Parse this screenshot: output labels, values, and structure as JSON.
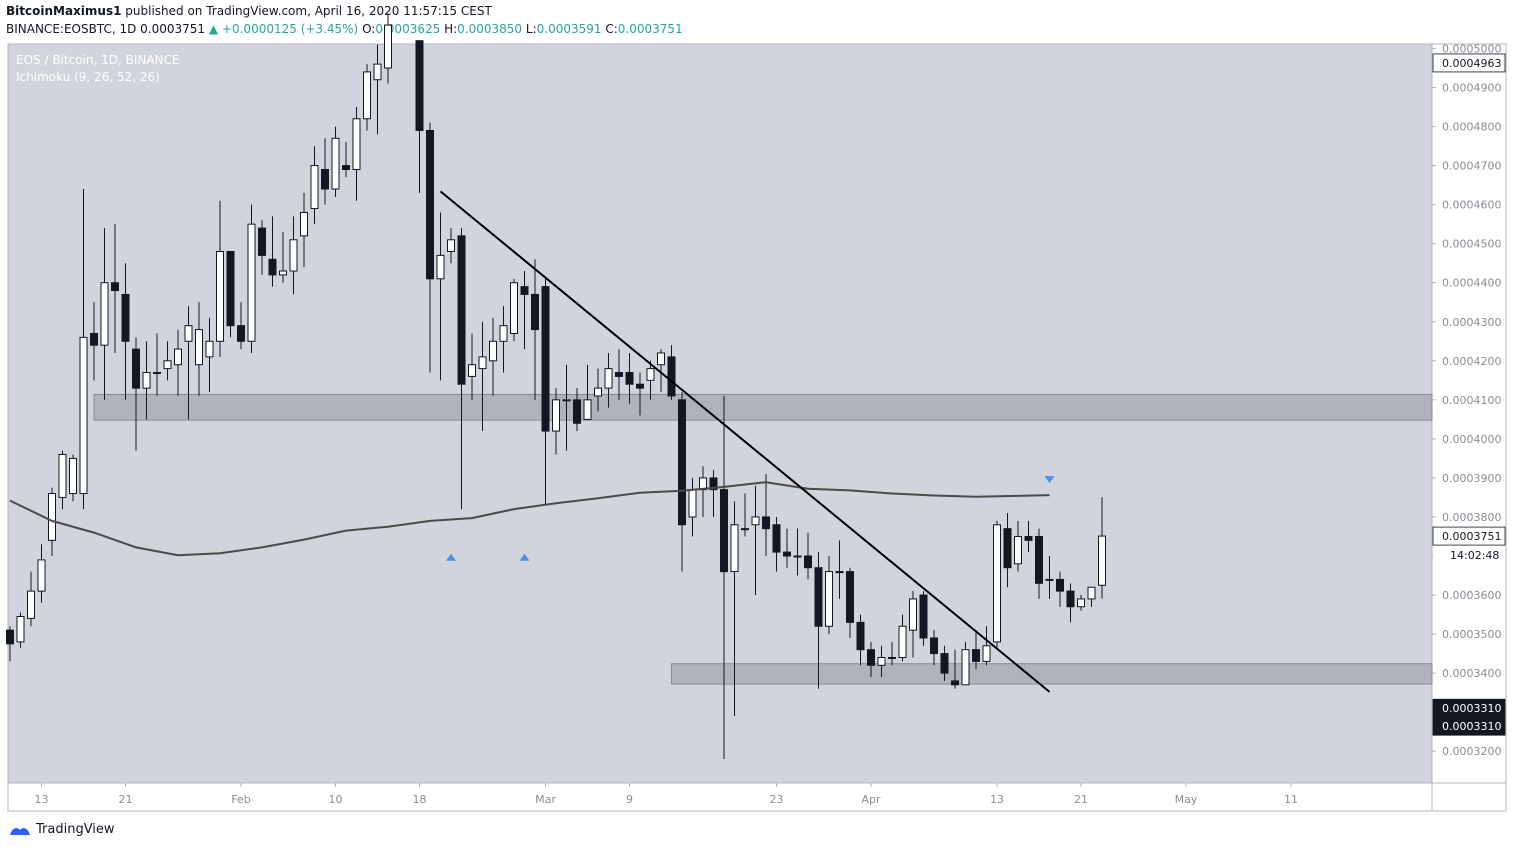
{
  "header": {
    "author": "BitcoinMaximus1",
    "published": "published on TradingView.com, April 16, 2020 11:57:15 CEST",
    "symbol": "BINANCE:EOSBTC, 1D",
    "last": "0.0003751",
    "change": "▲ +0.0000125 (+3.45%)",
    "o_label": "O:",
    "o": "0.0003625",
    "h_label": "H:",
    "h": "0.0003850",
    "l_label": "L:",
    "l": "0.0003591",
    "c_label": "C:",
    "c": "0.0003751"
  },
  "footer": {
    "brand": "TradingView"
  },
  "chart_data": {
    "type": "candlestick",
    "title": "EOS / Bitcoin, 1D, BINANCE",
    "indicator": "Ichimoku (9, 26, 52, 26)",
    "colors": {
      "background": "#d1d4dc",
      "up_body": "#ffffff",
      "down_body": "#131722",
      "zone": "#9598a1",
      "marker": "#4a8fe6",
      "trendline": "#000000",
      "baseline": "#4a4a4a"
    },
    "ylim": [
      0.00031185,
      0.00050115
    ],
    "y_ticks": [
      "0.0005000",
      "0.0004900",
      "0.0004800",
      "0.0004700",
      "0.0004600",
      "0.0004500",
      "0.0004400",
      "0.0004300",
      "0.0004200",
      "0.0004100",
      "0.0004000",
      "0.0003900",
      "0.0003800",
      "0.0003700",
      "0.0003600",
      "0.0003500",
      "0.0003400",
      "0.0003300",
      "0.0003200"
    ],
    "price_labels": [
      {
        "value": "0.0004963",
        "style": "outline"
      },
      {
        "value": "0.0003751",
        "style": "outline"
      },
      {
        "value": "14:02:48",
        "style": "plain",
        "price": 0.0003702
      },
      {
        "value": "0.0003310",
        "style": "dark"
      },
      {
        "value": "0.0003310",
        "style": "dark",
        "price": 0.0003264
      }
    ],
    "x_ticks": [
      {
        "label": "13",
        "day": 3
      },
      {
        "label": "21",
        "day": 11
      },
      {
        "label": "Feb",
        "day": 22
      },
      {
        "label": "10",
        "day": 31
      },
      {
        "label": "18",
        "day": 39
      },
      {
        "label": "Mar",
        "day": 51
      },
      {
        "label": "9",
        "day": 59
      },
      {
        "label": "23",
        "day": 73
      },
      {
        "label": "Apr",
        "day": 82
      },
      {
        "label": "13",
        "day": 94
      },
      {
        "label": "21",
        "day": 102
      },
      {
        "label": "May",
        "day": 112
      },
      {
        "label": "11",
        "day": 122
      }
    ],
    "zones": [
      {
        "low": 0.0004048,
        "high": 0.0004114,
        "from_day": 8
      },
      {
        "low": 0.0003372,
        "high": 0.0003424,
        "from_day": 63
      }
    ],
    "trendline": {
      "from": [
        41,
        0.0004634
      ],
      "to": [
        99,
        0.0003352
      ]
    },
    "markers": [
      {
        "day": 42,
        "price": 0.0003698,
        "dir": "up"
      },
      {
        "day": 49,
        "price": 0.0003698,
        "dir": "up"
      },
      {
        "day": 99,
        "price": 0.0003897,
        "dir": "down"
      }
    ],
    "baseline": [
      [
        0,
        0.0003842
      ],
      [
        4,
        0.000379
      ],
      [
        8,
        0.000376
      ],
      [
        12,
        0.0003722
      ],
      [
        16,
        0.0003702
      ],
      [
        20,
        0.0003707
      ],
      [
        24,
        0.0003722
      ],
      [
        28,
        0.0003742
      ],
      [
        32,
        0.0003765
      ],
      [
        36,
        0.0003775
      ],
      [
        40,
        0.000379
      ],
      [
        44,
        0.0003797
      ],
      [
        48,
        0.000382
      ],
      [
        52,
        0.0003835
      ],
      [
        56,
        0.0003848
      ],
      [
        60,
        0.0003862
      ],
      [
        64,
        0.0003867
      ],
      [
        68,
        0.0003877
      ],
      [
        72,
        0.0003889
      ],
      [
        76,
        0.0003872
      ],
      [
        80,
        0.0003868
      ],
      [
        84,
        0.000386
      ],
      [
        88,
        0.0003855
      ],
      [
        92,
        0.0003852
      ],
      [
        96,
        0.0003854
      ],
      [
        99,
        0.0003856
      ]
    ],
    "candles": [
      [
        0,
        0.000351,
        0.0003475,
        0.000352,
        0.000343
      ],
      [
        1,
        0.000348,
        0.0003545,
        0.0003555,
        0.0003465
      ],
      [
        2,
        0.000354,
        0.000361,
        0.000366,
        0.000352
      ],
      [
        3,
        0.000361,
        0.000369,
        0.000373,
        0.000358
      ],
      [
        4,
        0.000374,
        0.000386,
        0.0003875,
        0.00037
      ],
      [
        5,
        0.000385,
        0.000396,
        0.000397,
        0.000382
      ],
      [
        6,
        0.000386,
        0.000395,
        0.000396,
        0.000384
      ],
      [
        7,
        0.000386,
        0.000426,
        0.000464,
        0.000382
      ],
      [
        8,
        0.000427,
        0.000424,
        0.000435,
        0.000415
      ],
      [
        9,
        0.000424,
        0.00044,
        0.000454,
        0.00041
      ],
      [
        10,
        0.00044,
        0.000438,
        0.000455,
        0.000422
      ],
      [
        11,
        0.000437,
        0.000425,
        0.000445,
        0.00041
      ],
      [
        12,
        0.000423,
        0.000413,
        0.000426,
        0.000397
      ],
      [
        13,
        0.000413,
        0.000417,
        0.000425,
        0.000405
      ],
      [
        14,
        0.000417,
        0.000417,
        0.000427,
        0.000411
      ],
      [
        15,
        0.000418,
        0.00042,
        0.000425,
        0.000415
      ],
      [
        16,
        0.000419,
        0.000423,
        0.000428,
        0.000411
      ],
      [
        17,
        0.000425,
        0.000429,
        0.000434,
        0.000405
      ],
      [
        18,
        0.000419,
        0.000428,
        0.000435,
        0.000411
      ],
      [
        19,
        0.000421,
        0.000425,
        0.000431,
        0.000412
      ],
      [
        20,
        0.000425,
        0.000448,
        0.000461,
        0.000421
      ],
      [
        21,
        0.000448,
        0.000429,
        0.000448,
        0.000426
      ],
      [
        22,
        0.000429,
        0.000425,
        0.000435,
        0.000423
      ],
      [
        23,
        0.000425,
        0.000455,
        0.00046,
        0.000422
      ],
      [
        24,
        0.000454,
        0.000447,
        0.000456,
        0.000442
      ],
      [
        25,
        0.000446,
        0.000442,
        0.000457,
        0.000439
      ],
      [
        26,
        0.000442,
        0.000443,
        0.000453,
        0.00044
      ],
      [
        27,
        0.000443,
        0.000451,
        0.000457,
        0.000437
      ],
      [
        28,
        0.000452,
        0.000458,
        0.000463,
        0.000444
      ],
      [
        29,
        0.000459,
        0.00047,
        0.000475,
        0.000455
      ],
      [
        30,
        0.000469,
        0.000464,
        0.000477,
        0.00046
      ],
      [
        31,
        0.000464,
        0.000477,
        0.00048,
        0.000462
      ],
      [
        32,
        0.00047,
        0.000469,
        0.000476,
        0.000467
      ],
      [
        33,
        0.000469,
        0.000482,
        0.000485,
        0.000461
      ],
      [
        34,
        0.000482,
        0.000494,
        0.000496,
        0.000479
      ],
      [
        35,
        0.000492,
        0.000496,
        0.000501,
        0.000478
      ],
      [
        36,
        0.000495,
        0.000506,
        0.000509,
        0.000491
      ],
      [
        39,
        0.000502,
        0.000479,
        0.000502,
        0.000463
      ],
      [
        40,
        0.000479,
        0.000441,
        0.000481,
        0.000417
      ],
      [
        41,
        0.000441,
        0.000447,
        0.000458,
        0.000415
      ],
      [
        42,
        0.000448,
        0.000451,
        0.000454,
        0.000445
      ],
      [
        43,
        0.000452,
        0.000414,
        0.000454,
        0.000382
      ],
      [
        44,
        0.000416,
        0.000419,
        0.000427,
        0.00041
      ],
      [
        45,
        0.000418,
        0.000421,
        0.00043,
        0.000402
      ],
      [
        46,
        0.00042,
        0.000425,
        0.000431,
        0.000411
      ],
      [
        47,
        0.000425,
        0.000429,
        0.000434,
        0.000417
      ],
      [
        48,
        0.000427,
        0.00044,
        0.000441,
        0.000425
      ],
      [
        49,
        0.000439,
        0.000437,
        0.000443,
        0.000423
      ],
      [
        50,
        0.000437,
        0.000428,
        0.000446,
        0.00041
      ],
      [
        51,
        0.000439,
        0.000402,
        0.000441,
        0.000383
      ],
      [
        52,
        0.000402,
        0.00041,
        0.000413,
        0.000396
      ],
      [
        53,
        0.00041,
        0.00041,
        0.000419,
        0.000397
      ],
      [
        54,
        0.00041,
        0.000404,
        0.000413,
        0.000402
      ],
      [
        55,
        0.000405,
        0.00041,
        0.000419,
        0.000405
      ],
      [
        56,
        0.000411,
        0.000413,
        0.000418,
        0.000407
      ],
      [
        57,
        0.000413,
        0.000418,
        0.000422,
        0.000408
      ],
      [
        58,
        0.000417,
        0.000416,
        0.000423,
        0.00041
      ],
      [
        59,
        0.000417,
        0.000414,
        0.000422,
        0.000409
      ],
      [
        60,
        0.000414,
        0.000413,
        0.000417,
        0.000406
      ],
      [
        61,
        0.000415,
        0.000418,
        0.00042,
        0.00041
      ],
      [
        62,
        0.000419,
        0.000422,
        0.000423,
        0.000412
      ],
      [
        63,
        0.000421,
        0.000411,
        0.000424,
        0.00041
      ],
      [
        64,
        0.00041,
        0.000378,
        0.000412,
        0.000366
      ],
      [
        65,
        0.00038,
        0.000387,
        0.00039,
        0.000375
      ],
      [
        66,
        0.000387,
        0.00039,
        0.000393,
        0.00038
      ],
      [
        67,
        0.00039,
        0.000387,
        0.000392,
        0.00038
      ],
      [
        68,
        0.000387,
        0.000366,
        0.000411,
        0.000318
      ],
      [
        69,
        0.000366,
        0.000378,
        0.000384,
        0.000329
      ],
      [
        70,
        0.000377,
        0.000377,
        0.000386,
        0.000375
      ],
      [
        71,
        0.000378,
        0.00038,
        0.000388,
        0.00036
      ],
      [
        72,
        0.00038,
        0.000377,
        0.000391,
        0.00037
      ],
      [
        73,
        0.000378,
        0.000371,
        0.00038,
        0.000366
      ],
      [
        74,
        0.000371,
        0.00037,
        0.000377,
        0.000367
      ],
      [
        75,
        0.00037,
        0.00037,
        0.000377,
        0.000365
      ],
      [
        76,
        0.00037,
        0.000367,
        0.000376,
        0.000364
      ],
      [
        77,
        0.000367,
        0.000352,
        0.000371,
        0.000336
      ],
      [
        78,
        0.000352,
        0.000366,
        0.00037,
        0.00035
      ],
      [
        79,
        0.000366,
        0.000366,
        0.000374,
        0.000359
      ],
      [
        80,
        0.000366,
        0.000353,
        0.000367,
        0.000349
      ],
      [
        81,
        0.000353,
        0.000346,
        0.000355,
        0.000342
      ],
      [
        82,
        0.000346,
        0.000342,
        0.000348,
        0.000339
      ],
      [
        83,
        0.000342,
        0.000344,
        0.000347,
        0.000339
      ],
      [
        84,
        0.000344,
        0.000344,
        0.000348,
        0.000342
      ],
      [
        85,
        0.000344,
        0.000352,
        0.000355,
        0.000343
      ],
      [
        86,
        0.000351,
        0.000359,
        0.000361,
        0.000344
      ],
      [
        87,
        0.00036,
        0.000349,
        0.000361,
        0.000347
      ],
      [
        88,
        0.000349,
        0.000345,
        0.000351,
        0.000342
      ],
      [
        89,
        0.000345,
        0.00034,
        0.000347,
        0.000338
      ],
      [
        90,
        0.000338,
        0.000337,
        0.000346,
        0.000336
      ],
      [
        91,
        0.000337,
        0.000346,
        0.000348,
        0.000337
      ],
      [
        92,
        0.000346,
        0.000343,
        0.000351,
        0.000341
      ],
      [
        93,
        0.000343,
        0.000347,
        0.000352,
        0.000342
      ],
      [
        94,
        0.000348,
        0.000378,
        0.000379,
        0.000346
      ],
      [
        95,
        0.000377,
        0.000367,
        0.000381,
        0.000362
      ],
      [
        96,
        0.000368,
        0.000375,
        0.000379,
        0.000366
      ],
      [
        97,
        0.000375,
        0.000374,
        0.000379,
        0.000371
      ],
      [
        98,
        0.000375,
        0.000363,
        0.000377,
        0.000359
      ],
      [
        99,
        0.000364,
        0.000364,
        0.00037,
        0.000359
      ],
      [
        100,
        0.000364,
        0.000361,
        0.000366,
        0.000357
      ],
      [
        101,
        0.000361,
        0.000357,
        0.000363,
        0.000353
      ],
      [
        102,
        0.000357,
        0.000359,
        0.00036,
        0.000356
      ],
      [
        103,
        0.000359,
        0.000362,
        0.000362,
        0.000357
      ],
      [
        104,
        0.0003625,
        0.0003751,
        0.000385,
        0.0003591
      ]
    ]
  }
}
